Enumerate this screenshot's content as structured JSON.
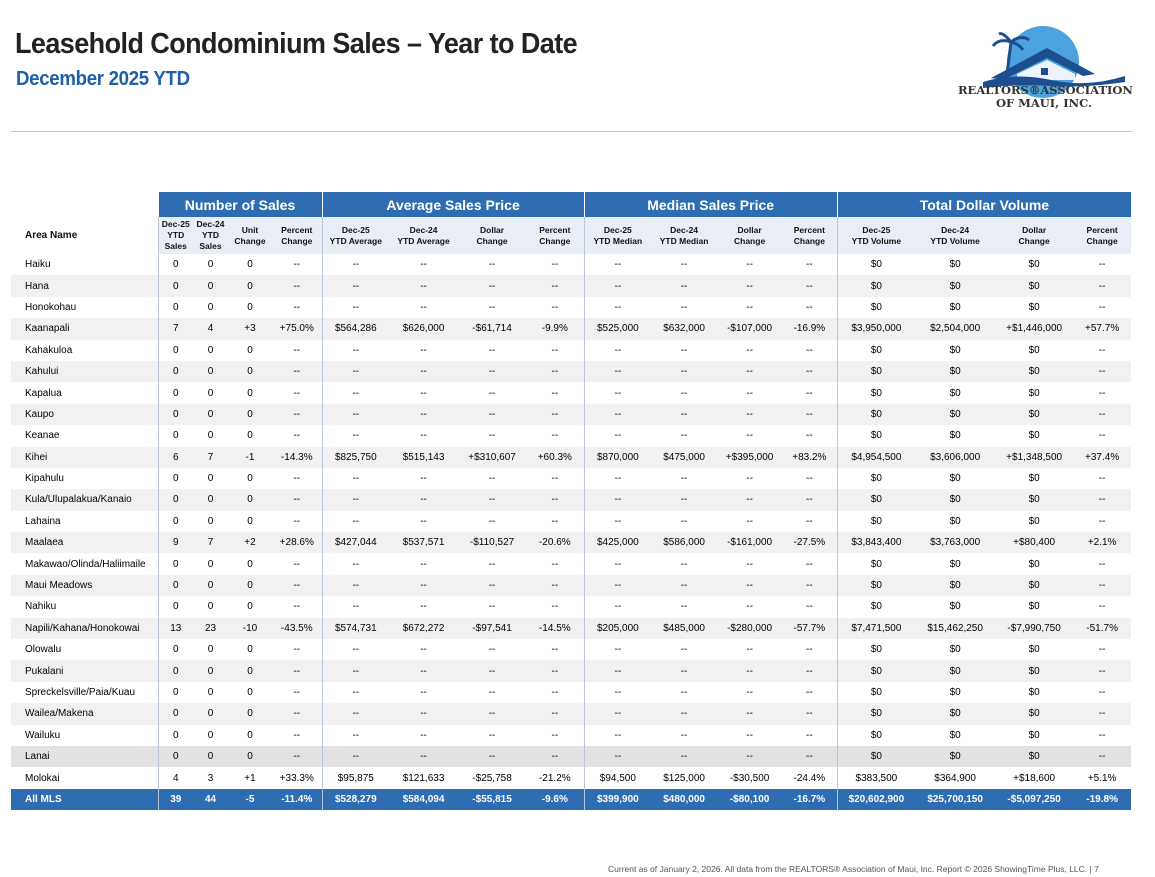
{
  "header": {
    "title": "Leasehold Condominium Sales – Year to Date",
    "subtitle": "December 2025 YTD",
    "logo_line1": "REALTORS®ASSOCIATION",
    "logo_line2": "OF MAUI, INC."
  },
  "groups": [
    "Number of Sales",
    "Average Sales Price",
    "Median Sales Price",
    "Total Dollar Volume"
  ],
  "columns": [
    [
      "Area Name"
    ],
    [
      "Dec-25",
      "YTD",
      "Sales"
    ],
    [
      "Dec-24",
      "YTD",
      "Sales"
    ],
    [
      "Unit",
      "Change"
    ],
    [
      "Percent",
      "Change"
    ],
    [
      "Dec-25",
      "YTD Average"
    ],
    [
      "Dec-24",
      "YTD Average"
    ],
    [
      "Dollar",
      "Change"
    ],
    [
      "Percent",
      "Change"
    ],
    [
      "Dec-25",
      "YTD Median"
    ],
    [
      "Dec-24",
      "YTD Median"
    ],
    [
      "Dollar",
      "Change"
    ],
    [
      "Percent",
      "Change"
    ],
    [
      "Dec-25",
      "YTD Volume"
    ],
    [
      "Dec-24",
      "YTD Volume"
    ],
    [
      "Dollar",
      "Change"
    ],
    [
      "Percent",
      "Change"
    ]
  ],
  "rows": [
    [
      "Haiku",
      "0",
      "0",
      "0",
      "--",
      "--",
      "--",
      "--",
      "--",
      "--",
      "--",
      "--",
      "--",
      "$0",
      "$0",
      "$0",
      "--"
    ],
    [
      "Hana",
      "0",
      "0",
      "0",
      "--",
      "--",
      "--",
      "--",
      "--",
      "--",
      "--",
      "--",
      "--",
      "$0",
      "$0",
      "$0",
      "--"
    ],
    [
      "Honokohau",
      "0",
      "0",
      "0",
      "--",
      "--",
      "--",
      "--",
      "--",
      "--",
      "--",
      "--",
      "--",
      "$0",
      "$0",
      "$0",
      "--"
    ],
    [
      "Kaanapali",
      "7",
      "4",
      "+3",
      "+75.0%",
      "$564,286",
      "$626,000",
      "-$61,714",
      "-9.9%",
      "$525,000",
      "$632,000",
      "-$107,000",
      "-16.9%",
      "$3,950,000",
      "$2,504,000",
      "+$1,446,000",
      "+57.7%"
    ],
    [
      "Kahakuloa",
      "0",
      "0",
      "0",
      "--",
      "--",
      "--",
      "--",
      "--",
      "--",
      "--",
      "--",
      "--",
      "$0",
      "$0",
      "$0",
      "--"
    ],
    [
      "Kahului",
      "0",
      "0",
      "0",
      "--",
      "--",
      "--",
      "--",
      "--",
      "--",
      "--",
      "--",
      "--",
      "$0",
      "$0",
      "$0",
      "--"
    ],
    [
      "Kapalua",
      "0",
      "0",
      "0",
      "--",
      "--",
      "--",
      "--",
      "--",
      "--",
      "--",
      "--",
      "--",
      "$0",
      "$0",
      "$0",
      "--"
    ],
    [
      "Kaupo",
      "0",
      "0",
      "0",
      "--",
      "--",
      "--",
      "--",
      "--",
      "--",
      "--",
      "--",
      "--",
      "$0",
      "$0",
      "$0",
      "--"
    ],
    [
      "Keanae",
      "0",
      "0",
      "0",
      "--",
      "--",
      "--",
      "--",
      "--",
      "--",
      "--",
      "--",
      "--",
      "$0",
      "$0",
      "$0",
      "--"
    ],
    [
      "Kihei",
      "6",
      "7",
      "-1",
      "-14.3%",
      "$825,750",
      "$515,143",
      "+$310,607",
      "+60.3%",
      "$870,000",
      "$475,000",
      "+$395,000",
      "+83.2%",
      "$4,954,500",
      "$3,606,000",
      "+$1,348,500",
      "+37.4%"
    ],
    [
      "Kipahulu",
      "0",
      "0",
      "0",
      "--",
      "--",
      "--",
      "--",
      "--",
      "--",
      "--",
      "--",
      "--",
      "$0",
      "$0",
      "$0",
      "--"
    ],
    [
      "Kula/Ulupalakua/Kanaio",
      "0",
      "0",
      "0",
      "--",
      "--",
      "--",
      "--",
      "--",
      "--",
      "--",
      "--",
      "--",
      "$0",
      "$0",
      "$0",
      "--"
    ],
    [
      "Lahaina",
      "0",
      "0",
      "0",
      "--",
      "--",
      "--",
      "--",
      "--",
      "--",
      "--",
      "--",
      "--",
      "$0",
      "$0",
      "$0",
      "--"
    ],
    [
      "Maalaea",
      "9",
      "7",
      "+2",
      "+28.6%",
      "$427,044",
      "$537,571",
      "-$110,527",
      "-20.6%",
      "$425,000",
      "$586,000",
      "-$161,000",
      "-27.5%",
      "$3,843,400",
      "$3,763,000",
      "+$80,400",
      "+2.1%"
    ],
    [
      "Makawao/Olinda/Haliimaile",
      "0",
      "0",
      "0",
      "--",
      "--",
      "--",
      "--",
      "--",
      "--",
      "--",
      "--",
      "--",
      "$0",
      "$0",
      "$0",
      "--"
    ],
    [
      "Maui Meadows",
      "0",
      "0",
      "0",
      "--",
      "--",
      "--",
      "--",
      "--",
      "--",
      "--",
      "--",
      "--",
      "$0",
      "$0",
      "$0",
      "--"
    ],
    [
      "Nahiku",
      "0",
      "0",
      "0",
      "--",
      "--",
      "--",
      "--",
      "--",
      "--",
      "--",
      "--",
      "--",
      "$0",
      "$0",
      "$0",
      "--"
    ],
    [
      "Napili/Kahana/Honokowai",
      "13",
      "23",
      "-10",
      "-43.5%",
      "$574,731",
      "$672,272",
      "-$97,541",
      "-14.5%",
      "$205,000",
      "$485,000",
      "-$280,000",
      "-57.7%",
      "$7,471,500",
      "$15,462,250",
      "-$7,990,750",
      "-51.7%"
    ],
    [
      "Olowalu",
      "0",
      "0",
      "0",
      "--",
      "--",
      "--",
      "--",
      "--",
      "--",
      "--",
      "--",
      "--",
      "$0",
      "$0",
      "$0",
      "--"
    ],
    [
      "Pukalani",
      "0",
      "0",
      "0",
      "--",
      "--",
      "--",
      "--",
      "--",
      "--",
      "--",
      "--",
      "--",
      "$0",
      "$0",
      "$0",
      "--"
    ],
    [
      "Spreckelsville/Paia/Kuau",
      "0",
      "0",
      "0",
      "--",
      "--",
      "--",
      "--",
      "--",
      "--",
      "--",
      "--",
      "--",
      "$0",
      "$0",
      "$0",
      "--"
    ],
    [
      "Wailea/Makena",
      "0",
      "0",
      "0",
      "--",
      "--",
      "--",
      "--",
      "--",
      "--",
      "--",
      "--",
      "--",
      "$0",
      "$0",
      "$0",
      "--"
    ],
    [
      "Wailuku",
      "0",
      "0",
      "0",
      "--",
      "--",
      "--",
      "--",
      "--",
      "--",
      "--",
      "--",
      "--",
      "$0",
      "$0",
      "$0",
      "--"
    ],
    [
      "Lanai",
      "0",
      "0",
      "0",
      "--",
      "--",
      "--",
      "--",
      "--",
      "--",
      "--",
      "--",
      "--",
      "$0",
      "$0",
      "$0",
      "--"
    ],
    [
      "Molokai",
      "4",
      "3",
      "+1",
      "+33.3%",
      "$95,875",
      "$121,633",
      "-$25,758",
      "-21.2%",
      "$94,500",
      "$125,000",
      "-$30,500",
      "-24.4%",
      "$383,500",
      "$364,900",
      "+$18,600",
      "+5.1%"
    ]
  ],
  "total": [
    "All MLS",
    "39",
    "44",
    "-5",
    "-11.4%",
    "$528,279",
    "$584,094",
    "-$55,815",
    "-9.6%",
    "$399,900",
    "$480,000",
    "-$80,100",
    "-16.7%",
    "$20,602,900",
    "$25,700,150",
    "-$5,097,250",
    "-19.8%"
  ],
  "footer": "Current as of January 2, 2026. All data from the REALTORS® Association of Maui, Inc. Report © 2026 ShowingTime Plus, LLC.  |  7",
  "colors": {
    "header_blue": "#2e6db2",
    "subtitle_blue": "#1f5fa8"
  }
}
